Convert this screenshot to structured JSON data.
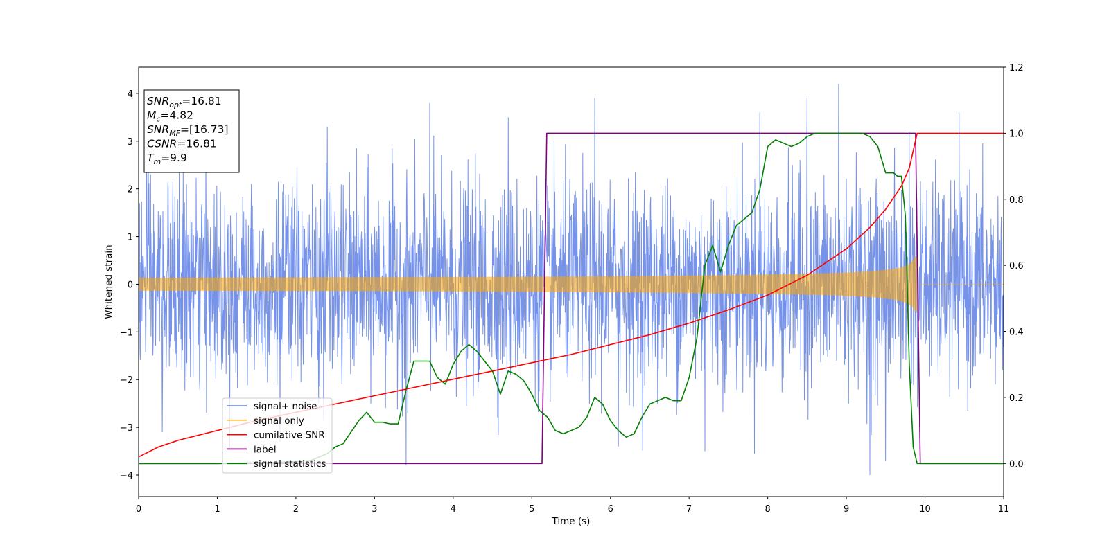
{
  "chart_data": {
    "type": "line",
    "xlabel": "Time (s)",
    "ylabel_left": "Whitened strain",
    "xlim": [
      0,
      11
    ],
    "ylim_left": [
      -4.45,
      4.55
    ],
    "ylim_right": [
      -0.1,
      1.2
    ],
    "x_ticks": [
      0,
      1,
      2,
      3,
      4,
      5,
      6,
      7,
      8,
      9,
      10,
      11
    ],
    "y_left_ticks": [
      -4,
      -3,
      -2,
      -1,
      0,
      1,
      2,
      3,
      4
    ],
    "y_right_ticks": [
      "0.0",
      "0.2",
      "0.4",
      "0.6",
      "0.8",
      "1.0",
      "1.2"
    ],
    "annotation": {
      "lines": [
        {
          "base": "SNR",
          "sub": "opt",
          "value": "=16.81"
        },
        {
          "base": "M",
          "sub": "c",
          "value": "=4.82"
        },
        {
          "base": "SNR",
          "sub": "MF",
          "value": "=[16.73]"
        },
        {
          "base": "CSNR",
          "sub": "",
          "value": "=16.81"
        },
        {
          "base": "T",
          "sub": "m",
          "value": "=9.9"
        }
      ]
    },
    "series": [
      {
        "name": "signal+ noise",
        "color": "#4169e1",
        "axis": "left",
        "kind": "noise",
        "std": 1.05,
        "peaks": [
          [
            0.1,
            3.2
          ],
          [
            1.8,
            3.4
          ],
          [
            2.4,
            3.3
          ],
          [
            3.7,
            3.8
          ],
          [
            4.7,
            3.5
          ],
          [
            5.8,
            3.9
          ],
          [
            7.9,
            3.6
          ],
          [
            8.5,
            3.9
          ],
          [
            8.9,
            4.2
          ],
          [
            9.8,
            3.2
          ],
          [
            3.4,
            -3.8
          ],
          [
            9.3,
            -4.0
          ],
          [
            9.5,
            -3.7
          ],
          [
            1.8,
            -3.3
          ],
          [
            6.1,
            -3.4
          ],
          [
            7.2,
            -3.5
          ],
          [
            0.3,
            -3.1
          ]
        ]
      },
      {
        "name": "signal only",
        "color": "#ffa500",
        "axis": "left",
        "kind": "chirp",
        "t_merge": 9.9
      },
      {
        "name": "cumilative SNR",
        "color": "#ff0000",
        "axis": "right",
        "x": [
          0,
          0.25,
          0.5,
          1.0,
          1.5,
          2.0,
          2.5,
          3.0,
          3.5,
          4.0,
          4.5,
          5.0,
          5.5,
          6.0,
          6.5,
          7.0,
          7.5,
          8.0,
          8.5,
          9.0,
          9.3,
          9.5,
          9.7,
          9.8,
          9.9,
          11.0
        ],
        "y": [
          0.02,
          0.05,
          0.07,
          0.1,
          0.13,
          0.155,
          0.18,
          0.205,
          0.23,
          0.255,
          0.28,
          0.305,
          0.33,
          0.36,
          0.39,
          0.425,
          0.465,
          0.51,
          0.57,
          0.65,
          0.715,
          0.77,
          0.84,
          0.895,
          1.0,
          1.0
        ]
      },
      {
        "name": "label",
        "color": "#800080",
        "axis": "right",
        "x": [
          0,
          5.13,
          5.19,
          9.88,
          9.94,
          11.0
        ],
        "y": [
          0.0,
          0.0,
          1.0,
          1.0,
          0.0,
          0.0
        ]
      },
      {
        "name": "signal statistics",
        "color": "#008000",
        "axis": "right",
        "x": [
          0,
          1.0,
          2.0,
          2.2,
          2.4,
          2.5,
          2.6,
          2.8,
          2.9,
          3.0,
          3.1,
          3.2,
          3.3,
          3.4,
          3.5,
          3.6,
          3.7,
          3.8,
          3.9,
          4.0,
          4.1,
          4.2,
          4.3,
          4.4,
          4.5,
          4.6,
          4.7,
          4.8,
          4.9,
          5.0,
          5.1,
          5.2,
          5.3,
          5.4,
          5.5,
          5.6,
          5.7,
          5.8,
          5.9,
          6.0,
          6.1,
          6.2,
          6.3,
          6.4,
          6.5,
          6.6,
          6.7,
          6.8,
          6.9,
          7.0,
          7.1,
          7.2,
          7.3,
          7.4,
          7.5,
          7.6,
          7.7,
          7.8,
          7.9,
          8.0,
          8.1,
          8.2,
          8.3,
          8.4,
          8.5,
          8.6,
          8.7,
          8.8,
          9.0,
          9.2,
          9.3,
          9.4,
          9.5,
          9.6,
          9.65,
          9.7,
          9.75,
          9.8,
          9.85,
          9.9,
          10.0,
          11.0
        ],
        "y": [
          0.0,
          0.0,
          0.005,
          0.01,
          0.03,
          0.05,
          0.06,
          0.13,
          0.155,
          0.125,
          0.125,
          0.12,
          0.12,
          0.22,
          0.31,
          0.31,
          0.31,
          0.26,
          0.24,
          0.3,
          0.34,
          0.36,
          0.34,
          0.31,
          0.28,
          0.21,
          0.28,
          0.27,
          0.25,
          0.21,
          0.16,
          0.14,
          0.1,
          0.09,
          0.1,
          0.11,
          0.14,
          0.2,
          0.18,
          0.13,
          0.1,
          0.08,
          0.09,
          0.14,
          0.18,
          0.19,
          0.2,
          0.19,
          0.19,
          0.26,
          0.38,
          0.6,
          0.66,
          0.58,
          0.66,
          0.72,
          0.74,
          0.76,
          0.83,
          0.96,
          0.98,
          0.97,
          0.96,
          0.97,
          0.99,
          1.0,
          1.0,
          1.0,
          1.0,
          1.0,
          0.99,
          0.96,
          0.88,
          0.88,
          0.87,
          0.87,
          0.75,
          0.3,
          0.05,
          0.0,
          0.0,
          0.0
        ]
      }
    ]
  }
}
